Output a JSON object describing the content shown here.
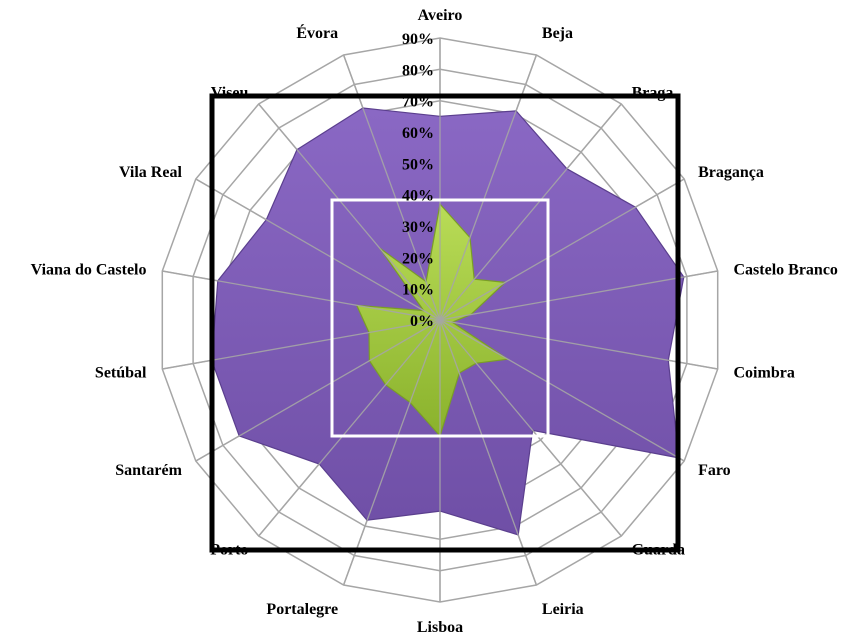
{
  "chart_data": {
    "type": "radar",
    "title": "",
    "categories": [
      "Aveiro",
      "Beja",
      "Braga",
      "Bragança",
      "Castelo Branco",
      "Coimbra",
      "Faro",
      "Guarda",
      "Leiria",
      "Lisboa",
      "Portalegre",
      "Porto",
      "Santarém",
      "Setúbal",
      "Viana do Castelo",
      "Vila Real",
      "Viseu",
      "Évora"
    ],
    "rlim": [
      0,
      90
    ],
    "ticks": [
      "0%",
      "10%",
      "20%",
      "30%",
      "40%",
      "50%",
      "60%",
      "70%",
      "80%",
      "90%"
    ],
    "tick_values": [
      0,
      10,
      20,
      30,
      40,
      50,
      60,
      70,
      80,
      90
    ],
    "grid": true,
    "series": [
      {
        "values": [
          65,
          71,
          63,
          72,
          79,
          74,
          88,
          46,
          73,
          61,
          68,
          60,
          74,
          74,
          72,
          64,
          71,
          72
        ],
        "color": "#7e5cb7"
      },
      {
        "values": [
          37,
          28,
          17,
          24,
          10,
          4,
          25,
          18,
          18,
          37,
          28,
          27,
          26,
          23,
          27,
          6,
          30,
          13
        ],
        "color": "#a4cc3a"
      }
    ]
  },
  "colors": {
    "grid": "#a6a6a6",
    "frame": "#000000",
    "accent_blue": "#4a7ab5"
  }
}
